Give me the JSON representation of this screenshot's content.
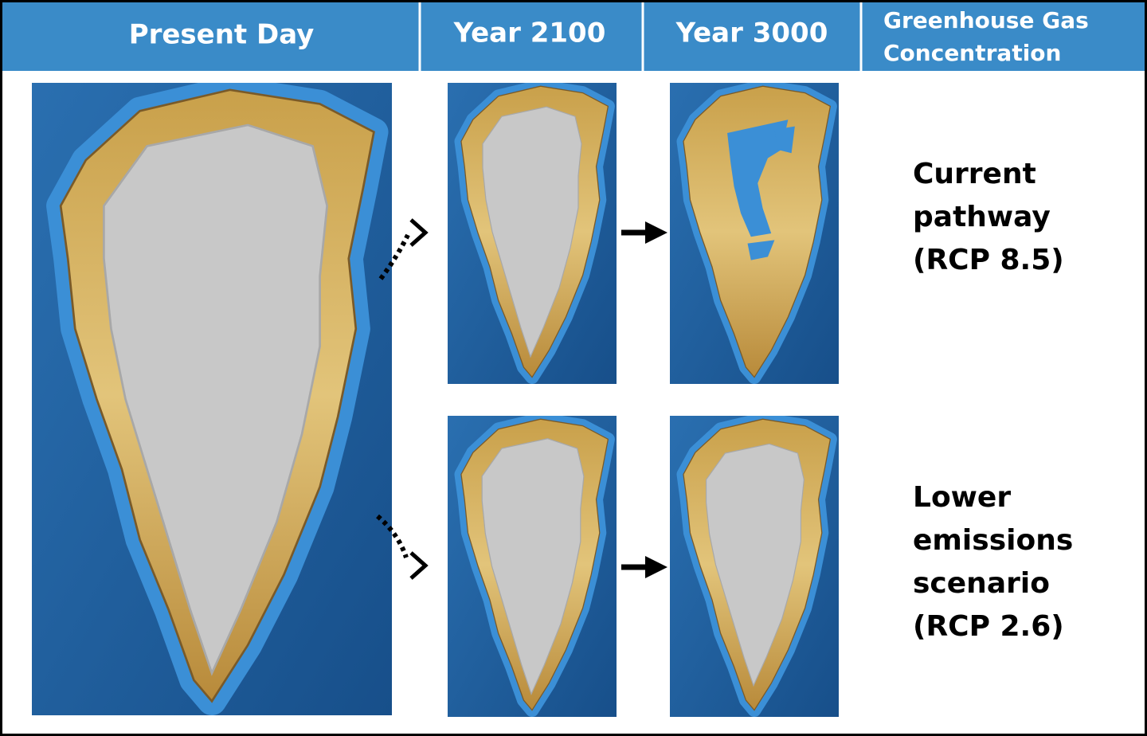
{
  "header": {
    "columns": [
      "Present Day",
      "Year 2100",
      "Year 3000"
    ],
    "concentration_header": [
      "Greenhouse Gas",
      "Concentration"
    ]
  },
  "scenarios": [
    {
      "lines": [
        "Current",
        "pathway",
        "(RCP 8.5)"
      ]
    },
    {
      "lines": [
        "Lower",
        "emissions",
        "scenario",
        "(RCP 2.6)"
      ]
    }
  ]
}
